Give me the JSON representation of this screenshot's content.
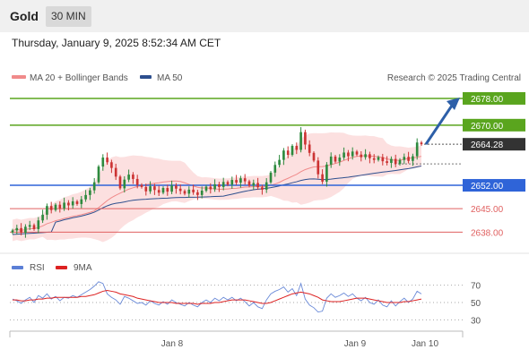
{
  "header": {
    "title": "Gold",
    "timeframe": "30 MIN"
  },
  "datetime": "Thursday, January 9, 2025 8:52:34 AM CET",
  "legend": {
    "ma20": "MA 20 + Bollinger Bands",
    "ma50": "MA 50",
    "copyright": "Research © 2025 Trading Central",
    "rsi": "RSI",
    "rsi_ma": "9MA"
  },
  "colors": {
    "ma20": "#f08a8a",
    "ma50": "#2d4f8e",
    "band": "#fbd6d6",
    "resistance": "#5aa51e",
    "support": "#2f64d8",
    "target": "#e06060",
    "bull": "#2d8a3e",
    "bear": "#cc3333",
    "arrow": "#2d5fa8",
    "price": "#333333"
  },
  "chart_data": {
    "type": "candlestick",
    "price_axis": {
      "min": 2633,
      "max": 2682
    },
    "levels": [
      {
        "label": "2678.00",
        "value": 2678,
        "kind": "resistance"
      },
      {
        "label": "2670.00",
        "value": 2670,
        "kind": "resistance"
      },
      {
        "label": "2652.00",
        "value": 2652,
        "kind": "support"
      },
      {
        "label": "2645.00",
        "value": 2645,
        "kind": "target"
      },
      {
        "label": "2638.00",
        "value": 2638,
        "kind": "target"
      }
    ],
    "current_price": {
      "label": "2664.28",
      "value": 2664.28
    },
    "x_labels": [
      "Jan 8",
      "Jan 9",
      "Jan 10"
    ],
    "close": [
      2638.5,
      2639.2,
      2637.8,
      2639.6,
      2640.1,
      2638.9,
      2641.5,
      2643.2,
      2645.8,
      2644.6,
      2646.2,
      2645.1,
      2646.8,
      2646.0,
      2647.2,
      2646.4,
      2647.8,
      2649.1,
      2650.5,
      2652.9,
      2657.6,
      2660.3,
      2658.9,
      2657.2,
      2654.6,
      2651.1,
      2653.7,
      2655.2,
      2653.9,
      2652.1,
      2651.5,
      2650.2,
      2651.7,
      2650.6,
      2649.8,
      2651.2,
      2650.1,
      2651.9,
      2651.0,
      2650.3,
      2649.5,
      2650.7,
      2649.9,
      2649.1,
      2650.4,
      2651.6,
      2650.8,
      2652.3,
      2651.5,
      2653.0,
      2652.2,
      2653.6,
      2652.8,
      2654.1,
      2653.2,
      2651.9,
      2652.7,
      2651.4,
      2650.7,
      2652.9,
      2655.8,
      2658.1,
      2659.6,
      2662.4,
      2661.1,
      2663.8,
      2662.6,
      2667.9,
      2664.2,
      2661.7,
      2659.4,
      2655.3,
      2653.1,
      2658.2,
      2660.6,
      2659.1,
      2660.3,
      2661.8,
      2660.7,
      2662.1,
      2661.2,
      2660.4,
      2661.3,
      2660.1,
      2659.6,
      2660.4,
      2659.2,
      2658.7,
      2659.9,
      2658.4,
      2659.6,
      2660.5,
      2659.3,
      2660.7,
      2664.8,
      2664.28
    ],
    "rsi": {
      "ticks": [
        70,
        50,
        30
      ],
      "range": [
        20,
        80
      ],
      "rsi": [
        54,
        52,
        49,
        53,
        56,
        50,
        58,
        55,
        60,
        54,
        57,
        52,
        56,
        55,
        58,
        56,
        59,
        62,
        65,
        69,
        74,
        72,
        60,
        56,
        53,
        48,
        57,
        55,
        52,
        49,
        50,
        47,
        52,
        49,
        47,
        51,
        48,
        53,
        50,
        48,
        46,
        50,
        47,
        45,
        50,
        53,
        50,
        55,
        52,
        56,
        53,
        56,
        52,
        55,
        51,
        46,
        50,
        45,
        43,
        53,
        60,
        63,
        65,
        68,
        62,
        66,
        58,
        72,
        54,
        47,
        44,
        39,
        40,
        55,
        60,
        56,
        58,
        61,
        57,
        60,
        55,
        52,
        56,
        50,
        48,
        53,
        47,
        45,
        52,
        46,
        51,
        55,
        50,
        54,
        63,
        60
      ],
      "ma": [
        53,
        53,
        52,
        52,
        53,
        53,
        54,
        54,
        55,
        55,
        56,
        56,
        56,
        56,
        56,
        56,
        57,
        57,
        58,
        59,
        61,
        63,
        64,
        63,
        62,
        60,
        59,
        58,
        57,
        55,
        54,
        53,
        52,
        51,
        50,
        50,
        50,
        50,
        49,
        49,
        49,
        49,
        49,
        48,
        49,
        49,
        49,
        50,
        50,
        51,
        52,
        53,
        53,
        53,
        53,
        52,
        51,
        50,
        49,
        49,
        50,
        52,
        54,
        56,
        58,
        60,
        61,
        62,
        61,
        60,
        58,
        56,
        53,
        52,
        51,
        51,
        51,
        52,
        53,
        54,
        55,
        55,
        55,
        54,
        53,
        52,
        51,
        50,
        50,
        50,
        50,
        51,
        51,
        52,
        53,
        54
      ]
    }
  }
}
